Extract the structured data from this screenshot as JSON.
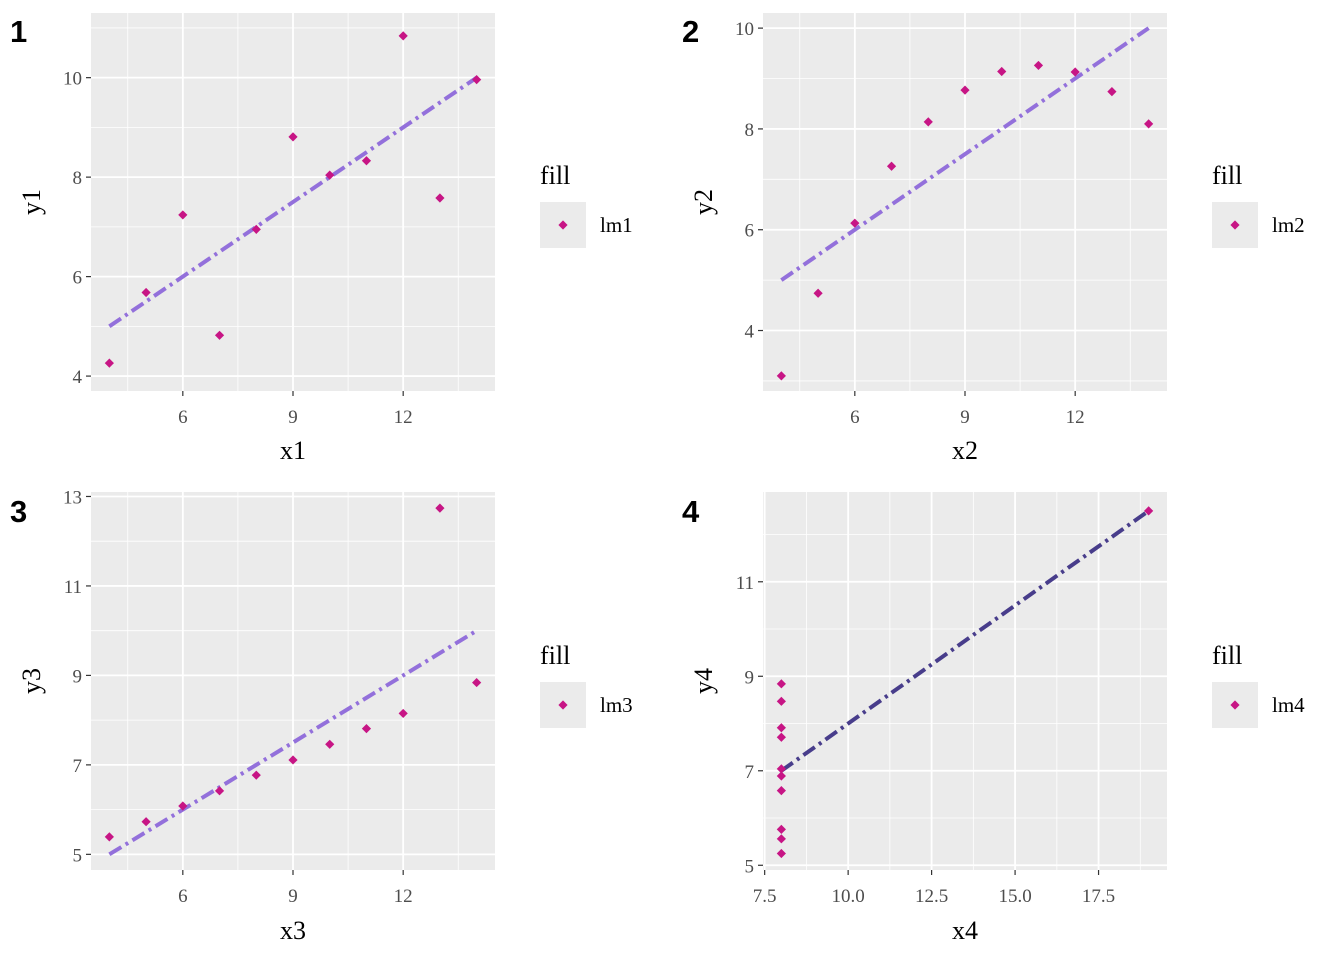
{
  "colors": {
    "panel_bg": "#EBEBEB",
    "grid_major": "#FFFFFF",
    "point": "#C71585",
    "line_default": "#9370DB",
    "line_panel4": "#483D8B"
  },
  "chart_data": [
    {
      "type": "scatter",
      "tag": "1",
      "xlabel": "x1",
      "ylabel": "y1",
      "xlim": [
        3.5,
        14.5
      ],
      "ylim": [
        3.7,
        11.3
      ],
      "xticks": [
        6,
        9,
        12
      ],
      "xtick_labels": [
        "6",
        "9",
        "12"
      ],
      "yticks": [
        4,
        6,
        8,
        10
      ],
      "ytick_labels": [
        "4",
        "6",
        "8",
        "10"
      ],
      "legend_title": "fill",
      "legend_label": "lm1",
      "line_color": "#9370DB",
      "points": [
        [
          10,
          8.04
        ],
        [
          8,
          6.95
        ],
        [
          13,
          7.58
        ],
        [
          9,
          8.81
        ],
        [
          11,
          8.33
        ],
        [
          14,
          9.96
        ],
        [
          6,
          7.24
        ],
        [
          4,
          4.26
        ],
        [
          12,
          10.84
        ],
        [
          7,
          4.82
        ],
        [
          5,
          5.68
        ]
      ],
      "fit": {
        "intercept": 3.0,
        "slope": 0.5,
        "x_range": [
          4,
          14
        ]
      }
    },
    {
      "type": "scatter",
      "tag": "2",
      "xlabel": "x2",
      "ylabel": "y2",
      "xlim": [
        3.5,
        14.5
      ],
      "ylim": [
        2.8,
        10.3
      ],
      "xticks": [
        6,
        9,
        12
      ],
      "xtick_labels": [
        "6",
        "9",
        "12"
      ],
      "yticks": [
        4,
        6,
        8,
        10
      ],
      "ytick_labels": [
        "4",
        "6",
        "8",
        "10"
      ],
      "legend_title": "fill",
      "legend_label": "lm2",
      "line_color": "#9370DB",
      "points": [
        [
          10,
          9.14
        ],
        [
          8,
          8.14
        ],
        [
          13,
          8.74
        ],
        [
          9,
          8.77
        ],
        [
          11,
          9.26
        ],
        [
          14,
          8.1
        ],
        [
          6,
          6.13
        ],
        [
          4,
          3.1
        ],
        [
          12,
          9.13
        ],
        [
          7,
          7.26
        ],
        [
          5,
          4.74
        ]
      ],
      "fit": {
        "intercept": 3.0,
        "slope": 0.5,
        "x_range": [
          4,
          14
        ]
      }
    },
    {
      "type": "scatter",
      "tag": "3",
      "xlabel": "x3",
      "ylabel": "y3",
      "xlim": [
        3.5,
        14.5
      ],
      "ylim": [
        4.65,
        13.1
      ],
      "xticks": [
        6,
        9,
        12
      ],
      "xtick_labels": [
        "6",
        "9",
        "12"
      ],
      "yticks": [
        5,
        7,
        9,
        11,
        13
      ],
      "ytick_labels": [
        "5",
        "7",
        "9",
        "11",
        "13"
      ],
      "legend_title": "fill",
      "legend_label": "lm3",
      "line_color": "#9370DB",
      "points": [
        [
          10,
          7.46
        ],
        [
          8,
          6.77
        ],
        [
          13,
          12.74
        ],
        [
          9,
          7.11
        ],
        [
          11,
          7.81
        ],
        [
          14,
          8.84
        ],
        [
          6,
          6.08
        ],
        [
          4,
          5.39
        ],
        [
          12,
          8.15
        ],
        [
          7,
          6.42
        ],
        [
          5,
          5.73
        ]
      ],
      "fit": {
        "intercept": 3.0,
        "slope": 0.5,
        "x_range": [
          4,
          14
        ]
      }
    },
    {
      "type": "scatter",
      "tag": "4",
      "xlabel": "x4",
      "ylabel": "y4",
      "xlim": [
        7.45,
        19.55
      ],
      "ylim": [
        4.9,
        12.9
      ],
      "xticks": [
        7.5,
        10.0,
        12.5,
        15.0,
        17.5
      ],
      "xtick_labels": [
        "7.5",
        "10.0",
        "12.5",
        "15.0",
        "17.5"
      ],
      "yticks": [
        5,
        7,
        9,
        11
      ],
      "ytick_labels": [
        "5",
        "7",
        "9",
        "11"
      ],
      "legend_title": "fill",
      "legend_label": "lm4",
      "line_color": "#483D8B",
      "points": [
        [
          8,
          6.58
        ],
        [
          8,
          5.76
        ],
        [
          8,
          7.71
        ],
        [
          8,
          8.84
        ],
        [
          8,
          8.47
        ],
        [
          8,
          7.04
        ],
        [
          8,
          5.25
        ],
        [
          19,
          12.5
        ],
        [
          8,
          5.56
        ],
        [
          8,
          7.91
        ],
        [
          8,
          6.89
        ]
      ],
      "fit": {
        "intercept": 3.0,
        "slope": 0.5,
        "x_range": [
          8,
          19
        ]
      }
    }
  ]
}
